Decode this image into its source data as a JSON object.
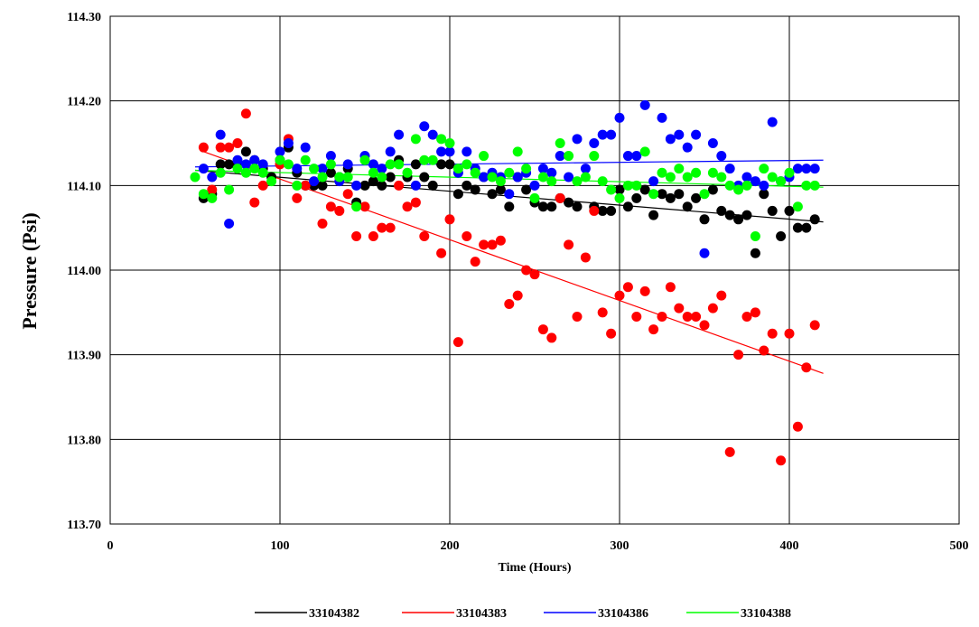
{
  "chart_data": {
    "type": "scatter",
    "title": "",
    "xlabel": "Time (Hours)",
    "ylabel": "Pressure (Psi)",
    "xlim": [
      0,
      500
    ],
    "ylim": [
      113.7,
      114.3
    ],
    "x_ticks": [
      0,
      100,
      200,
      300,
      400,
      500
    ],
    "y_ticks": [
      113.7,
      113.8,
      113.9,
      114.0,
      114.1,
      114.2,
      114.3
    ],
    "x_tick_labels": [
      "0",
      "100",
      "200",
      "300",
      "400",
      "500"
    ],
    "y_tick_labels": [
      "113.70",
      "113.80",
      "113.90",
      "114.00",
      "114.10",
      "114.20",
      "114.30"
    ],
    "grid": true,
    "legend_position": "bottom",
    "series": [
      {
        "name": "33104382",
        "color": "#000000",
        "trend": [
          [
            50,
            114.118
          ],
          [
            420,
            114.057
          ]
        ],
        "points": [
          [
            55,
            114.085
          ],
          [
            60,
            114.09
          ],
          [
            65,
            114.125
          ],
          [
            70,
            114.125
          ],
          [
            75,
            114.125
          ],
          [
            80,
            114.14
          ],
          [
            85,
            114.13
          ],
          [
            90,
            114.12
          ],
          [
            95,
            114.11
          ],
          [
            100,
            114.13
          ],
          [
            105,
            114.145
          ],
          [
            110,
            114.115
          ],
          [
            115,
            114.1
          ],
          [
            120,
            114.1
          ],
          [
            125,
            114.1
          ],
          [
            130,
            114.115
          ],
          [
            135,
            114.11
          ],
          [
            140,
            114.12
          ],
          [
            145,
            114.08
          ],
          [
            150,
            114.1
          ],
          [
            155,
            114.105
          ],
          [
            160,
            114.1
          ],
          [
            165,
            114.11
          ],
          [
            170,
            114.13
          ],
          [
            175,
            114.11
          ],
          [
            180,
            114.125
          ],
          [
            185,
            114.11
          ],
          [
            190,
            114.1
          ],
          [
            195,
            114.125
          ],
          [
            200,
            114.125
          ],
          [
            205,
            114.09
          ],
          [
            210,
            114.1
          ],
          [
            215,
            114.095
          ],
          [
            220,
            114.11
          ],
          [
            225,
            114.09
          ],
          [
            230,
            114.095
          ],
          [
            235,
            114.075
          ],
          [
            240,
            114.11
          ],
          [
            245,
            114.095
          ],
          [
            250,
            114.08
          ],
          [
            255,
            114.075
          ],
          [
            260,
            114.075
          ],
          [
            265,
            114.085
          ],
          [
            270,
            114.08
          ],
          [
            275,
            114.075
          ],
          [
            285,
            114.075
          ],
          [
            290,
            114.07
          ],
          [
            295,
            114.07
          ],
          [
            300,
            114.095
          ],
          [
            305,
            114.075
          ],
          [
            310,
            114.085
          ],
          [
            315,
            114.095
          ],
          [
            320,
            114.065
          ],
          [
            325,
            114.09
          ],
          [
            330,
            114.085
          ],
          [
            335,
            114.09
          ],
          [
            340,
            114.075
          ],
          [
            345,
            114.085
          ],
          [
            350,
            114.06
          ],
          [
            355,
            114.095
          ],
          [
            360,
            114.07
          ],
          [
            365,
            114.065
          ],
          [
            370,
            114.06
          ],
          [
            375,
            114.065
          ],
          [
            380,
            114.02
          ],
          [
            385,
            114.09
          ],
          [
            390,
            114.07
          ],
          [
            395,
            114.04
          ],
          [
            400,
            114.07
          ],
          [
            405,
            114.05
          ],
          [
            410,
            114.05
          ],
          [
            415,
            114.06
          ]
        ]
      },
      {
        "name": "33104383",
        "color": "#ff0000",
        "trend": [
          [
            55,
            114.14
          ],
          [
            420,
            113.878
          ]
        ],
        "points": [
          [
            55,
            114.145
          ],
          [
            60,
            114.095
          ],
          [
            65,
            114.145
          ],
          [
            70,
            114.145
          ],
          [
            75,
            114.15
          ],
          [
            80,
            114.185
          ],
          [
            85,
            114.08
          ],
          [
            90,
            114.1
          ],
          [
            100,
            114.125
          ],
          [
            105,
            114.155
          ],
          [
            110,
            114.085
          ],
          [
            115,
            114.1
          ],
          [
            125,
            114.055
          ],
          [
            130,
            114.075
          ],
          [
            135,
            114.07
          ],
          [
            140,
            114.09
          ],
          [
            145,
            114.04
          ],
          [
            150,
            114.075
          ],
          [
            155,
            114.04
          ],
          [
            160,
            114.05
          ],
          [
            165,
            114.05
          ],
          [
            170,
            114.1
          ],
          [
            175,
            114.075
          ],
          [
            180,
            114.08
          ],
          [
            185,
            114.04
          ],
          [
            195,
            114.02
          ],
          [
            200,
            114.06
          ],
          [
            205,
            113.915
          ],
          [
            210,
            114.04
          ],
          [
            215,
            114.01
          ],
          [
            220,
            114.03
          ],
          [
            225,
            114.03
          ],
          [
            230,
            114.035
          ],
          [
            235,
            113.96
          ],
          [
            240,
            113.97
          ],
          [
            245,
            114.0
          ],
          [
            250,
            113.995
          ],
          [
            255,
            113.93
          ],
          [
            260,
            113.92
          ],
          [
            265,
            114.085
          ],
          [
            270,
            114.03
          ],
          [
            275,
            113.945
          ],
          [
            280,
            114.015
          ],
          [
            285,
            114.07
          ],
          [
            290,
            113.95
          ],
          [
            295,
            113.925
          ],
          [
            300,
            113.97
          ],
          [
            305,
            113.98
          ],
          [
            310,
            113.945
          ],
          [
            315,
            113.975
          ],
          [
            320,
            113.93
          ],
          [
            325,
            113.945
          ],
          [
            330,
            113.98
          ],
          [
            335,
            113.955
          ],
          [
            340,
            113.945
          ],
          [
            345,
            113.945
          ],
          [
            350,
            113.935
          ],
          [
            355,
            113.955
          ],
          [
            360,
            113.97
          ],
          [
            365,
            113.785
          ],
          [
            370,
            113.9
          ],
          [
            375,
            113.945
          ],
          [
            380,
            113.95
          ],
          [
            385,
            113.905
          ],
          [
            390,
            113.925
          ],
          [
            395,
            113.775
          ],
          [
            400,
            113.925
          ],
          [
            405,
            113.815
          ],
          [
            410,
            113.885
          ],
          [
            415,
            113.935
          ]
        ]
      },
      {
        "name": "33104386",
        "color": "#0000ff",
        "trend": [
          [
            50,
            114.122
          ],
          [
            420,
            114.13
          ]
        ],
        "points": [
          [
            55,
            114.12
          ],
          [
            60,
            114.11
          ],
          [
            65,
            114.16
          ],
          [
            70,
            114.055
          ],
          [
            75,
            114.13
          ],
          [
            80,
            114.125
          ],
          [
            85,
            114.13
          ],
          [
            90,
            114.125
          ],
          [
            100,
            114.14
          ],
          [
            105,
            114.15
          ],
          [
            110,
            114.12
          ],
          [
            115,
            114.145
          ],
          [
            120,
            114.105
          ],
          [
            125,
            114.12
          ],
          [
            130,
            114.135
          ],
          [
            135,
            114.105
          ],
          [
            140,
            114.125
          ],
          [
            145,
            114.1
          ],
          [
            150,
            114.135
          ],
          [
            155,
            114.125
          ],
          [
            160,
            114.12
          ],
          [
            165,
            114.14
          ],
          [
            170,
            114.16
          ],
          [
            180,
            114.1
          ],
          [
            185,
            114.17
          ],
          [
            190,
            114.16
          ],
          [
            195,
            114.14
          ],
          [
            200,
            114.14
          ],
          [
            205,
            114.115
          ],
          [
            210,
            114.14
          ],
          [
            215,
            114.12
          ],
          [
            220,
            114.11
          ],
          [
            225,
            114.115
          ],
          [
            230,
            114.11
          ],
          [
            235,
            114.09
          ],
          [
            240,
            114.11
          ],
          [
            245,
            114.115
          ],
          [
            250,
            114.1
          ],
          [
            255,
            114.12
          ],
          [
            260,
            114.115
          ],
          [
            265,
            114.135
          ],
          [
            270,
            114.11
          ],
          [
            275,
            114.155
          ],
          [
            280,
            114.12
          ],
          [
            285,
            114.15
          ],
          [
            290,
            114.16
          ],
          [
            295,
            114.16
          ],
          [
            300,
            114.18
          ],
          [
            305,
            114.135
          ],
          [
            310,
            114.135
          ],
          [
            315,
            114.195
          ],
          [
            320,
            114.105
          ],
          [
            325,
            114.18
          ],
          [
            330,
            114.155
          ],
          [
            335,
            114.16
          ],
          [
            340,
            114.145
          ],
          [
            345,
            114.16
          ],
          [
            350,
            114.02
          ],
          [
            355,
            114.15
          ],
          [
            360,
            114.135
          ],
          [
            365,
            114.12
          ],
          [
            370,
            114.1
          ],
          [
            375,
            114.11
          ],
          [
            380,
            114.105
          ],
          [
            385,
            114.1
          ],
          [
            390,
            114.175
          ],
          [
            395,
            114.105
          ],
          [
            400,
            114.11
          ],
          [
            405,
            114.12
          ],
          [
            410,
            114.12
          ],
          [
            415,
            114.12
          ]
        ]
      },
      {
        "name": "33104388",
        "color": "#00ff00",
        "trend": [
          [
            50,
            114.118
          ],
          [
            420,
            114.098
          ]
        ],
        "points": [
          [
            50,
            114.11
          ],
          [
            55,
            114.09
          ],
          [
            60,
            114.085
          ],
          [
            65,
            114.115
          ],
          [
            70,
            114.095
          ],
          [
            75,
            114.12
          ],
          [
            80,
            114.115
          ],
          [
            85,
            114.12
          ],
          [
            90,
            114.115
          ],
          [
            95,
            114.105
          ],
          [
            100,
            114.13
          ],
          [
            105,
            114.125
          ],
          [
            110,
            114.1
          ],
          [
            115,
            114.13
          ],
          [
            120,
            114.12
          ],
          [
            125,
            114.11
          ],
          [
            130,
            114.125
          ],
          [
            135,
            114.11
          ],
          [
            140,
            114.11
          ],
          [
            145,
            114.075
          ],
          [
            150,
            114.13
          ],
          [
            155,
            114.115
          ],
          [
            160,
            114.11
          ],
          [
            165,
            114.125
          ],
          [
            170,
            114.125
          ],
          [
            175,
            114.115
          ],
          [
            180,
            114.155
          ],
          [
            185,
            114.13
          ],
          [
            190,
            114.13
          ],
          [
            195,
            114.155
          ],
          [
            200,
            114.15
          ],
          [
            205,
            114.12
          ],
          [
            210,
            114.125
          ],
          [
            215,
            114.115
          ],
          [
            220,
            114.135
          ],
          [
            225,
            114.11
          ],
          [
            230,
            114.105
          ],
          [
            235,
            114.115
          ],
          [
            240,
            114.14
          ],
          [
            245,
            114.12
          ],
          [
            250,
            114.085
          ],
          [
            255,
            114.11
          ],
          [
            260,
            114.105
          ],
          [
            265,
            114.15
          ],
          [
            270,
            114.135
          ],
          [
            275,
            114.105
          ],
          [
            280,
            114.11
          ],
          [
            285,
            114.135
          ],
          [
            290,
            114.105
          ],
          [
            295,
            114.095
          ],
          [
            300,
            114.085
          ],
          [
            305,
            114.1
          ],
          [
            310,
            114.1
          ],
          [
            315,
            114.14
          ],
          [
            320,
            114.09
          ],
          [
            325,
            114.115
          ],
          [
            330,
            114.11
          ],
          [
            335,
            114.12
          ],
          [
            340,
            114.11
          ],
          [
            345,
            114.115
          ],
          [
            350,
            114.09
          ],
          [
            355,
            114.115
          ],
          [
            360,
            114.11
          ],
          [
            365,
            114.1
          ],
          [
            370,
            114.095
          ],
          [
            375,
            114.1
          ],
          [
            380,
            114.04
          ],
          [
            385,
            114.12
          ],
          [
            390,
            114.11
          ],
          [
            395,
            114.105
          ],
          [
            400,
            114.115
          ],
          [
            405,
            114.075
          ],
          [
            410,
            114.1
          ],
          [
            415,
            114.1
          ]
        ]
      }
    ]
  }
}
